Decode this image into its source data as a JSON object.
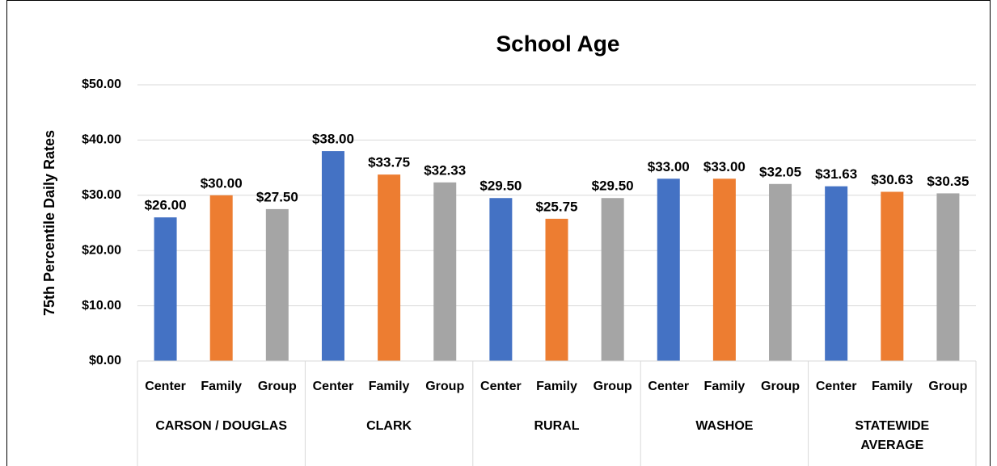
{
  "chart_data": {
    "type": "bar",
    "title": "School Age",
    "ylabel": "75th Percentile Daily Rates",
    "categories": [
      "CARSON / DOUGLAS",
      "CLARK",
      "RURAL",
      "WASHOE",
      "STATEWIDE AVERAGE"
    ],
    "series": [
      {
        "name": "Center",
        "color": "#4472c4",
        "values": [
          26.0,
          38.0,
          29.5,
          33.0,
          31.63
        ],
        "value_labels": [
          "$26.00",
          "$38.00",
          "$29.50",
          "$33.00",
          "$31.63"
        ]
      },
      {
        "name": "Family",
        "color": "#ed7d31",
        "values": [
          30.0,
          33.75,
          25.75,
          33.0,
          30.63
        ],
        "value_labels": [
          "$30.00",
          "$33.75",
          "$25.75",
          "$33.00",
          "$30.63"
        ]
      },
      {
        "name": "Group",
        "color": "#a5a5a5",
        "values": [
          27.5,
          32.33,
          29.5,
          32.05,
          30.35
        ],
        "value_labels": [
          "$27.50",
          "$32.33",
          "$29.50",
          "$32.05",
          "$30.35"
        ]
      }
    ],
    "ylim": [
      0,
      50
    ],
    "yticks": [
      {
        "value": 0,
        "label": "$0.00"
      },
      {
        "value": 10,
        "label": "$10.00"
      },
      {
        "value": 20,
        "label": "$20.00"
      },
      {
        "value": 30,
        "label": "$30.00"
      },
      {
        "value": 40,
        "label": "$40.00"
      },
      {
        "value": 50,
        "label": "$50.00"
      }
    ],
    "grid": true
  }
}
